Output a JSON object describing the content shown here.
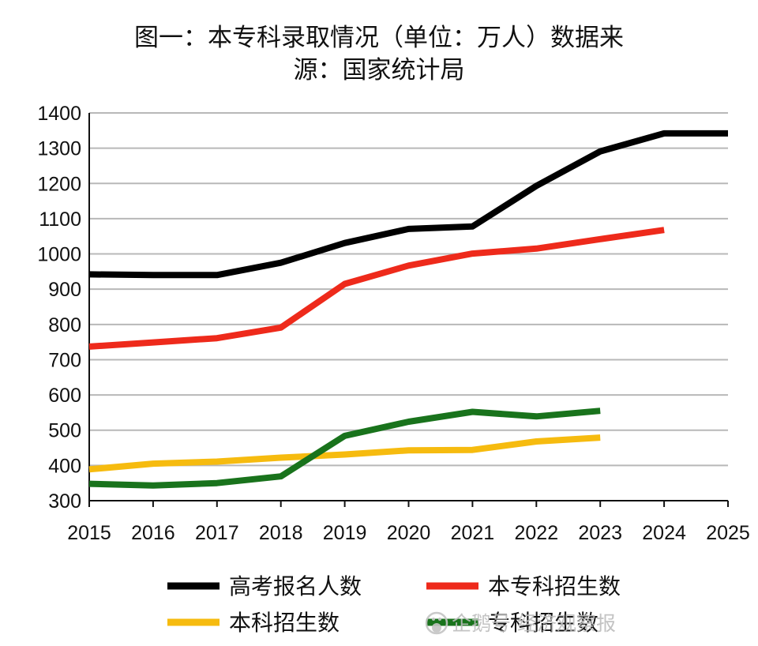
{
  "chart_data": {
    "type": "line",
    "title_line1": "图一：本专科录取情况（单位：万人）数据来",
    "title_line2": "源：国家统计局",
    "x": [
      2015,
      2016,
      2017,
      2018,
      2019,
      2020,
      2021,
      2022,
      2023,
      2024,
      2025
    ],
    "ylim": [
      300,
      1400
    ],
    "yticks": [
      300,
      400,
      500,
      600,
      700,
      800,
      900,
      1000,
      1100,
      1200,
      1300,
      1400
    ],
    "xlim": [
      2015,
      2025
    ],
    "grid": true,
    "legend_position": "bottom",
    "series": [
      {
        "name": "高考报名人数",
        "color": "#000000",
        "points": [
          [
            2015,
            942
          ],
          [
            2016,
            940
          ],
          [
            2017,
            940
          ],
          [
            2018,
            975
          ],
          [
            2019,
            1031
          ],
          [
            2020,
            1071
          ],
          [
            2021,
            1078
          ],
          [
            2022,
            1193
          ],
          [
            2023,
            1291
          ],
          [
            2024,
            1342
          ],
          [
            2025,
            1342
          ]
        ]
      },
      {
        "name": "本专科招生数",
        "color": "#ee2a1b",
        "points": [
          [
            2015,
            737
          ],
          [
            2016,
            749
          ],
          [
            2017,
            761
          ],
          [
            2018,
            791
          ],
          [
            2019,
            915
          ],
          [
            2020,
            967
          ],
          [
            2021,
            1001
          ],
          [
            2022,
            1015
          ],
          [
            2023,
            1042
          ],
          [
            2024,
            1068
          ]
        ]
      },
      {
        "name": "本科招生数",
        "color": "#f6bb0f",
        "points": [
          [
            2015,
            389
          ],
          [
            2016,
            405
          ],
          [
            2017,
            411
          ],
          [
            2018,
            422
          ],
          [
            2019,
            431
          ],
          [
            2020,
            443
          ],
          [
            2021,
            444
          ],
          [
            2022,
            468
          ],
          [
            2023,
            479
          ]
        ]
      },
      {
        "name": "专科招生数",
        "color": "#19731c",
        "points": [
          [
            2015,
            348
          ],
          [
            2016,
            343
          ],
          [
            2017,
            350
          ],
          [
            2018,
            369
          ],
          [
            2019,
            484
          ],
          [
            2020,
            524
          ],
          [
            2021,
            552
          ],
          [
            2022,
            539
          ],
          [
            2023,
            555
          ]
        ]
      }
    ]
  },
  "watermark": {
    "text": "企鹅号 经济观察报",
    "icon": "penguin-logo-icon"
  }
}
